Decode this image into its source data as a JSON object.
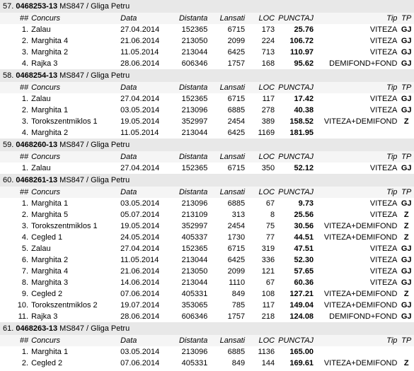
{
  "headers": {
    "nn": "##",
    "concurs": "Concurs",
    "data": "Data",
    "dist": "Distanta",
    "lans": "Lansati",
    "loc": "LOC",
    "punc": "PUNCTAJ",
    "tip": "Tip",
    "tp": "TP"
  },
  "entries": [
    {
      "num": "57.",
      "code": "0468253-13",
      "desc": " MS847 / Gliga Petru",
      "rows": [
        {
          "nn": "1.",
          "concurs": "Zalau",
          "data": "27.04.2014",
          "dist": "152365",
          "lans": "6715",
          "loc": "173",
          "punc": "25.76",
          "tip": "VITEZA",
          "tp": "GJ"
        },
        {
          "nn": "2.",
          "concurs": "Marghita 4",
          "data": "21.06.2014",
          "dist": "213050",
          "lans": "2099",
          "loc": "224",
          "punc": "106.72",
          "tip": "VITEZA",
          "tp": "GJ"
        },
        {
          "nn": "3.",
          "concurs": "Marghita 2",
          "data": "11.05.2014",
          "dist": "213044",
          "lans": "6425",
          "loc": "713",
          "punc": "110.97",
          "tip": "VITEZA",
          "tp": "GJ"
        },
        {
          "nn": "4.",
          "concurs": "Rajka 3",
          "data": "28.06.2014",
          "dist": "606346",
          "lans": "1757",
          "loc": "168",
          "punc": "95.62",
          "tip": "DEMIFOND+FOND",
          "tp": "GJ"
        }
      ]
    },
    {
      "num": "58.",
      "code": "0468254-13",
      "desc": " MS847 / Gliga Petru",
      "rows": [
        {
          "nn": "1.",
          "concurs": "Zalau",
          "data": "27.04.2014",
          "dist": "152365",
          "lans": "6715",
          "loc": "117",
          "punc": "17.42",
          "tip": "VITEZA",
          "tp": "GJ"
        },
        {
          "nn": "2.",
          "concurs": "Marghita 1",
          "data": "03.05.2014",
          "dist": "213096",
          "lans": "6885",
          "loc": "278",
          "punc": "40.38",
          "tip": "VITEZA",
          "tp": "GJ"
        },
        {
          "nn": "3.",
          "concurs": "Torokszentmiklos 1",
          "data": "19.05.2014",
          "dist": "352997",
          "lans": "2454",
          "loc": "389",
          "punc": "158.52",
          "tip": "VITEZA+DEMIFOND",
          "tp": "Z"
        },
        {
          "nn": "4.",
          "concurs": "Marghita 2",
          "data": "11.05.2014",
          "dist": "213044",
          "lans": "6425",
          "loc": "1169",
          "punc": "181.95",
          "tip": "",
          "tp": ""
        }
      ]
    },
    {
      "num": "59.",
      "code": "0468260-13",
      "desc": " MS847 / Gliga Petru",
      "rows": [
        {
          "nn": "1.",
          "concurs": "Zalau",
          "data": "27.04.2014",
          "dist": "152365",
          "lans": "6715",
          "loc": "350",
          "punc": "52.12",
          "tip": "VITEZA",
          "tp": "GJ"
        }
      ]
    },
    {
      "num": "60.",
      "code": "0468261-13",
      "desc": " MS847 / Gliga Petru",
      "rows": [
        {
          "nn": "1.",
          "concurs": "Marghita 1",
          "data": "03.05.2014",
          "dist": "213096",
          "lans": "6885",
          "loc": "67",
          "punc": "9.73",
          "tip": "VITEZA",
          "tp": "GJ"
        },
        {
          "nn": "2.",
          "concurs": "Marghita 5",
          "data": "05.07.2014",
          "dist": "213109",
          "lans": "313",
          "loc": "8",
          "punc": "25.56",
          "tip": "VITEZA",
          "tp": "Z"
        },
        {
          "nn": "3.",
          "concurs": "Torokszentmiklos 1",
          "data": "19.05.2014",
          "dist": "352997",
          "lans": "2454",
          "loc": "75",
          "punc": "30.56",
          "tip": "VITEZA+DEMIFOND",
          "tp": "Z"
        },
        {
          "nn": "4.",
          "concurs": "Cegled 1",
          "data": "24.05.2014",
          "dist": "405337",
          "lans": "1730",
          "loc": "77",
          "punc": "44.51",
          "tip": "VITEZA+DEMIFOND",
          "tp": "Z"
        },
        {
          "nn": "5.",
          "concurs": "Zalau",
          "data": "27.04.2014",
          "dist": "152365",
          "lans": "6715",
          "loc": "319",
          "punc": "47.51",
          "tip": "VITEZA",
          "tp": "GJ"
        },
        {
          "nn": "6.",
          "concurs": "Marghita 2",
          "data": "11.05.2014",
          "dist": "213044",
          "lans": "6425",
          "loc": "336",
          "punc": "52.30",
          "tip": "VITEZA",
          "tp": "GJ"
        },
        {
          "nn": "7.",
          "concurs": "Marghita 4",
          "data": "21.06.2014",
          "dist": "213050",
          "lans": "2099",
          "loc": "121",
          "punc": "57.65",
          "tip": "VITEZA",
          "tp": "GJ"
        },
        {
          "nn": "8.",
          "concurs": "Marghita 3",
          "data": "14.06.2014",
          "dist": "213044",
          "lans": "1110",
          "loc": "67",
          "punc": "60.36",
          "tip": "VITEZA",
          "tp": "GJ"
        },
        {
          "nn": "9.",
          "concurs": "Cegled 2",
          "data": "07.06.2014",
          "dist": "405331",
          "lans": "849",
          "loc": "108",
          "punc": "127.21",
          "tip": "VITEZA+DEMIFOND",
          "tp": "Z"
        },
        {
          "nn": "10.",
          "concurs": "Torokszentmiklos 2",
          "data": "19.07.2014",
          "dist": "353065",
          "lans": "785",
          "loc": "117",
          "punc": "149.04",
          "tip": "VITEZA+DEMIFOND",
          "tp": "GJ"
        },
        {
          "nn": "11.",
          "concurs": "Rajka 3",
          "data": "28.06.2014",
          "dist": "606346",
          "lans": "1757",
          "loc": "218",
          "punc": "124.08",
          "tip": "DEMIFOND+FOND",
          "tp": "GJ"
        }
      ]
    },
    {
      "num": "61.",
      "code": "0468263-13",
      "desc": " MS847 / Gliga Petru",
      "rows": [
        {
          "nn": "1.",
          "concurs": "Marghita 1",
          "data": "03.05.2014",
          "dist": "213096",
          "lans": "6885",
          "loc": "1136",
          "punc": "165.00",
          "tip": "",
          "tp": ""
        },
        {
          "nn": "2.",
          "concurs": "Cegled 2",
          "data": "07.06.2014",
          "dist": "405331",
          "lans": "849",
          "loc": "144",
          "punc": "169.61",
          "tip": "VITEZA+DEMIFOND",
          "tp": "Z"
        }
      ]
    }
  ]
}
